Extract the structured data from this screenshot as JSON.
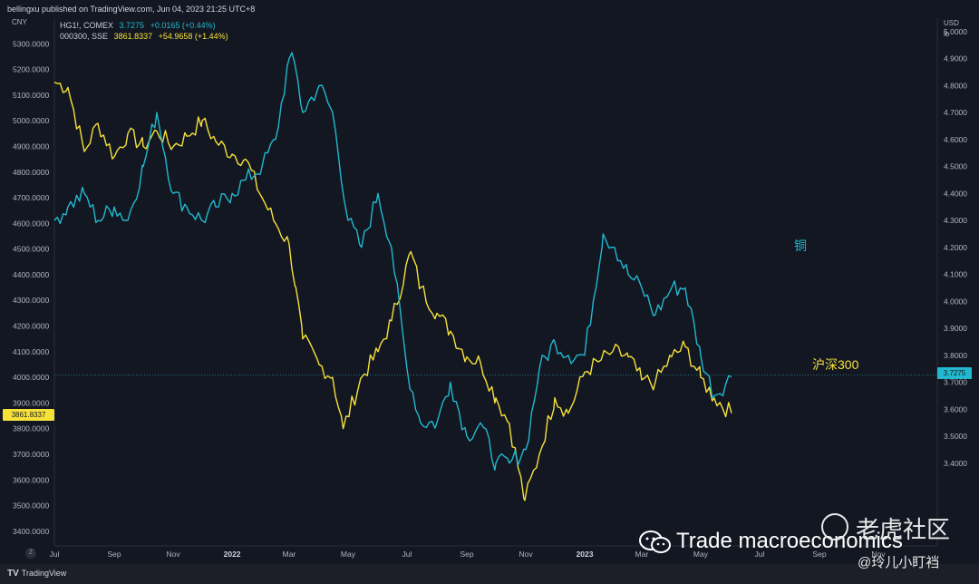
{
  "header": {
    "publisher": "bellingxu published on TradingView.com, Jun 04, 2023 21:25 UTC+8"
  },
  "legend": {
    "copper": {
      "name": "HG1!, COMEX",
      "price": "3.7275",
      "change": "+0.0165 (+0.44%)"
    },
    "csi300": {
      "name": "000300, SSE",
      "price": "3861.8337",
      "change": "+54.9658 (+1.44%)"
    }
  },
  "units": {
    "left": "CNY",
    "right_currency": "USD",
    "right_unit": "lb"
  },
  "annotations": {
    "copper": "铜",
    "csi300": "沪深300"
  },
  "badges": {
    "left": "3861.8337",
    "right": "3.7275"
  },
  "footer": {
    "tz_button": "Z",
    "brand": "TradingView",
    "brand_mark": "TV"
  },
  "watermark": {
    "text": "Trade macroeconomics",
    "community": "老虎社区",
    "author": "@玲儿小盯裆"
  },
  "colors": {
    "background": "#131722",
    "copper": "#22b8cf",
    "csi300": "#f5e13a",
    "axis_text": "#b2b5be",
    "grid": "#1e2230"
  },
  "chart_data": {
    "type": "line",
    "x_ticks": [
      "Jul",
      "Sep",
      "Nov",
      "2022",
      "Mar",
      "May",
      "Jul",
      "Sep",
      "Nov",
      "2023",
      "Mar",
      "May",
      "Jul",
      "Sep",
      "Nov"
    ],
    "y_left": {
      "label": "CNY",
      "range": [
        3350,
        5400
      ],
      "ticks": [
        "3400.0000",
        "3500.0000",
        "3600.0000",
        "3700.0000",
        "3800.0000",
        "3900.0000",
        "4000.0000",
        "4100.0000",
        "4200.0000",
        "4300.0000",
        "4400.0000",
        "4500.0000",
        "4600.0000",
        "4700.0000",
        "4800.0000",
        "4900.0000",
        "5000.0000",
        "5100.0000",
        "5200.0000",
        "5300.0000"
      ]
    },
    "y_right": {
      "label": "USD / lb",
      "range": [
        3.1,
        5.05
      ],
      "ticks": [
        "3.4000",
        "3.5000",
        "3.6000",
        "3.7000",
        "3.8000",
        "3.9000",
        "4.0000",
        "4.1000",
        "4.2000",
        "4.3000",
        "4.4000",
        "4.5000",
        "4.6000",
        "4.7000",
        "4.8000",
        "4.9000",
        "5.0000"
      ]
    },
    "current_copper": 3.7275,
    "grid": false,
    "series": [
      {
        "name": "000300, SSE",
        "axis": "left",
        "color": "#f5e13a",
        "x": [
          "2021-07-01",
          "2021-07-15",
          "2021-08-01",
          "2021-08-15",
          "2021-09-01",
          "2021-09-15",
          "2021-10-01",
          "2021-10-15",
          "2021-11-01",
          "2021-11-15",
          "2021-12-01",
          "2021-12-15",
          "2022-01-01",
          "2022-01-15",
          "2022-02-01",
          "2022-02-15",
          "2022-03-01",
          "2022-03-08",
          "2022-03-15",
          "2022-04-01",
          "2022-04-15",
          "2022-04-26",
          "2022-05-15",
          "2022-06-01",
          "2022-06-15",
          "2022-07-05",
          "2022-07-15",
          "2022-08-01",
          "2022-08-15",
          "2022-09-01",
          "2022-09-15",
          "2022-10-01",
          "2022-10-15",
          "2022-10-31",
          "2022-11-15",
          "2022-12-01",
          "2022-12-15",
          "2023-01-01",
          "2023-01-15",
          "2023-01-30",
          "2023-02-15",
          "2023-03-01",
          "2023-03-15",
          "2023-04-01",
          "2023-04-15",
          "2023-05-01",
          "2023-05-15",
          "2023-06-02"
        ],
        "values": [
          5150,
          5130,
          4880,
          4990,
          4860,
          4950,
          4900,
          4960,
          4900,
          4940,
          5000,
          4920,
          4870,
          4850,
          4700,
          4600,
          4520,
          4350,
          4150,
          4050,
          4000,
          3800,
          4000,
          4100,
          4220,
          4490,
          4350,
          4250,
          4180,
          4080,
          4060,
          3920,
          3820,
          3520,
          3700,
          3920,
          3860,
          4020,
          4060,
          4100,
          4080,
          3990,
          3980,
          4080,
          4120,
          4000,
          3920,
          3860
        ]
      },
      {
        "name": "HG1!, COMEX",
        "axis": "right",
        "color": "#22b8cf",
        "x": [
          "2021-07-01",
          "2021-07-15",
          "2021-08-01",
          "2021-08-15",
          "2021-09-01",
          "2021-09-15",
          "2021-10-01",
          "2021-10-15",
          "2021-11-01",
          "2021-11-15",
          "2021-12-01",
          "2021-12-15",
          "2022-01-01",
          "2022-01-15",
          "2022-02-01",
          "2022-02-15",
          "2022-03-01",
          "2022-03-07",
          "2022-03-15",
          "2022-04-01",
          "2022-04-15",
          "2022-05-01",
          "2022-05-15",
          "2022-06-01",
          "2022-06-15",
          "2022-07-01",
          "2022-07-15",
          "2022-08-01",
          "2022-08-15",
          "2022-09-01",
          "2022-09-15",
          "2022-10-01",
          "2022-10-15",
          "2022-11-01",
          "2022-11-15",
          "2022-12-01",
          "2022-12-15",
          "2023-01-01",
          "2023-01-20",
          "2023-02-01",
          "2023-02-15",
          "2023-03-01",
          "2023-03-15",
          "2023-04-01",
          "2023-04-15",
          "2023-05-01",
          "2023-05-15",
          "2023-06-02"
        ],
        "values": [
          4.3,
          4.35,
          4.4,
          4.3,
          4.35,
          4.3,
          4.5,
          4.7,
          4.4,
          4.35,
          4.3,
          4.35,
          4.4,
          4.45,
          4.5,
          4.6,
          4.9,
          4.88,
          4.7,
          4.8,
          4.7,
          4.3,
          4.2,
          4.4,
          4.2,
          3.75,
          3.55,
          3.55,
          3.7,
          3.5,
          3.55,
          3.4,
          3.4,
          3.45,
          3.75,
          3.85,
          3.8,
          3.8,
          4.25,
          4.2,
          4.1,
          4.05,
          3.95,
          4.05,
          4.05,
          3.8,
          3.65,
          3.72
        ]
      }
    ]
  }
}
